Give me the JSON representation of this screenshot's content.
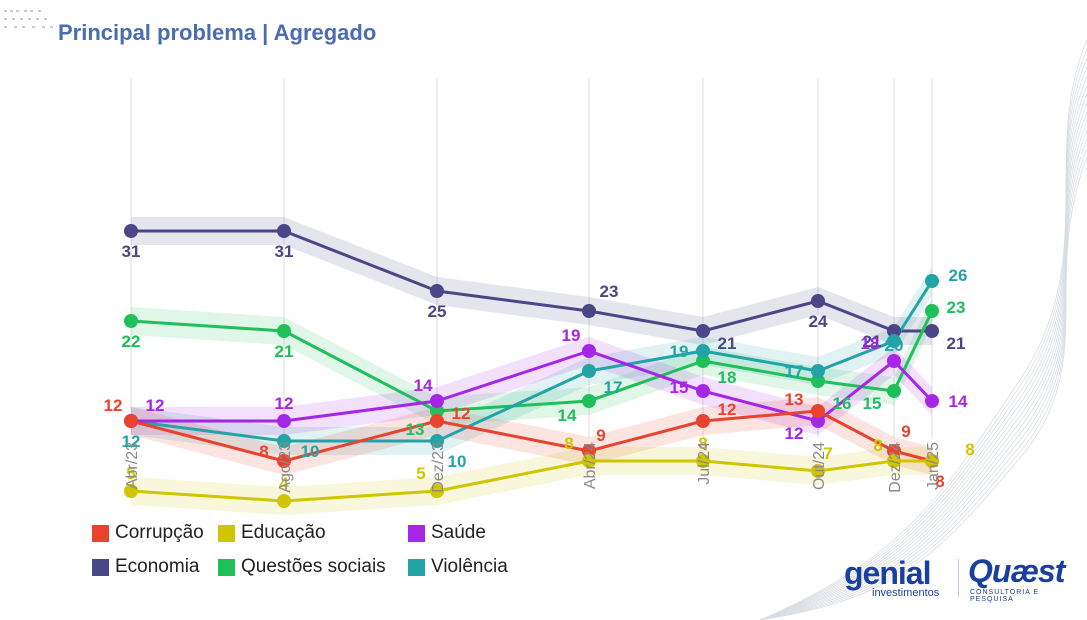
{
  "header": {
    "title": "Principal problema | Agregado"
  },
  "colors": {
    "corrupcao": "#e8432e",
    "educacao": "#cfc500",
    "saude": "#a626e8",
    "economia": "#4a4687",
    "questoes_sociais": "#1fbf5a",
    "violencia": "#23a3a6"
  },
  "legend": {
    "items": [
      {
        "label": "Corrupção",
        "color": "#e8432e"
      },
      {
        "label": "Educação",
        "color": "#cfc500"
      },
      {
        "label": "Saúde",
        "color": "#a626e8"
      },
      {
        "label": "Economia",
        "color": "#4a4687"
      },
      {
        "label": "Questões sociais",
        "color": "#1fbf5a"
      },
      {
        "label": "Violência",
        "color": "#23a3a6"
      }
    ]
  },
  "logos": {
    "genial": "genial",
    "genial_sub": "investimentos",
    "quaest": "Quæst",
    "quaest_sub": "CONSULTORIA E PESQUISA"
  },
  "chart_data": {
    "type": "line",
    "title": "Principal problema | Agregado",
    "categories": [
      "Abr/23",
      "Ago/23",
      "Dez/23",
      "Abr/24",
      "Jul/24",
      "Out/24",
      "Dez/24",
      "Jan/25"
    ],
    "ylim": [
      0,
      35
    ],
    "grid": "vertical",
    "legend_position": "bottom-left",
    "series": [
      {
        "name": "Economia",
        "color": "#4a4687",
        "values": [
          31,
          31,
          25,
          23,
          21,
          24,
          21,
          21
        ]
      },
      {
        "name": "Questões sociais",
        "color": "#1fbf5a",
        "values": [
          22,
          21,
          13,
          14,
          18,
          16,
          15,
          23
        ]
      },
      {
        "name": "Violência",
        "color": "#23a3a6",
        "values": [
          12,
          10,
          10,
          17,
          19,
          17,
          20,
          26
        ]
      },
      {
        "name": "Saúde",
        "color": "#a626e8",
        "values": [
          12,
          12,
          14,
          19,
          15,
          12,
          18,
          14
        ]
      },
      {
        "name": "Corrupção",
        "color": "#e8432e",
        "values": [
          12,
          8,
          12,
          9,
          12,
          13,
          9,
          8
        ]
      },
      {
        "name": "Educação",
        "color": "#cfc500",
        "values": [
          5,
          4,
          5,
          8,
          8,
          7,
          8,
          8
        ]
      }
    ]
  }
}
